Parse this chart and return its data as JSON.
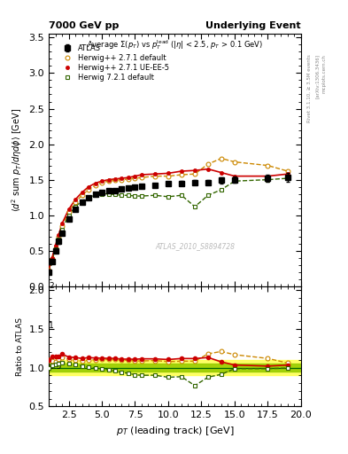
{
  "title_left": "7000 GeV pp",
  "title_right": "Underlying Event",
  "ylabel_main": "⟨d² sum p_T/dηdφ⟩ [GeV]",
  "ylabel_ratio": "Ratio to ATLAS",
  "xlabel": "p_{T} (leading track) [GeV]",
  "watermark": "ATLAS_2010_S8894728",
  "right_label1": "Rivet 3.1.10, ≥ 3.5M events",
  "right_label2": "[arXiv:1306.3436]",
  "right_label3": "mcplots.cern.ch",
  "ylim_main": [
    0,
    3.55
  ],
  "ylim_ratio": [
    0.5,
    2.05
  ],
  "xlim": [
    1,
    20
  ],
  "atlas_x": [
    1.0,
    1.25,
    1.5,
    1.75,
    2.0,
    2.5,
    3.0,
    3.5,
    4.0,
    4.5,
    5.0,
    5.5,
    6.0,
    6.5,
    7.0,
    7.5,
    8.0,
    9.0,
    10.0,
    11.0,
    12.0,
    13.0,
    14.0,
    15.0,
    17.5,
    19.0
  ],
  "atlas_y": [
    0.2,
    0.35,
    0.5,
    0.63,
    0.75,
    0.95,
    1.08,
    1.18,
    1.24,
    1.29,
    1.32,
    1.34,
    1.35,
    1.37,
    1.38,
    1.4,
    1.41,
    1.42,
    1.44,
    1.45,
    1.46,
    1.46,
    1.49,
    1.5,
    1.52,
    1.53
  ],
  "atlas_yerr": [
    0.03,
    0.03,
    0.03,
    0.03,
    0.03,
    0.03,
    0.02,
    0.02,
    0.02,
    0.02,
    0.02,
    0.02,
    0.02,
    0.02,
    0.02,
    0.02,
    0.02,
    0.02,
    0.02,
    0.03,
    0.03,
    0.03,
    0.04,
    0.04,
    0.05,
    0.06
  ],
  "atlas_color": "#000000",
  "hw271d_x": [
    1.0,
    1.25,
    1.5,
    1.75,
    2.0,
    2.5,
    3.0,
    3.5,
    4.0,
    4.5,
    5.0,
    5.5,
    6.0,
    6.5,
    7.0,
    7.5,
    8.0,
    9.0,
    10.0,
    11.0,
    12.0,
    13.0,
    14.0,
    15.0,
    17.5,
    19.0
  ],
  "hw271d_y": [
    0.22,
    0.38,
    0.54,
    0.7,
    0.85,
    1.05,
    1.18,
    1.28,
    1.36,
    1.42,
    1.46,
    1.48,
    1.49,
    1.5,
    1.51,
    1.52,
    1.53,
    1.55,
    1.55,
    1.57,
    1.58,
    1.72,
    1.8,
    1.75,
    1.7,
    1.62
  ],
  "hw271d_color": "#cc8800",
  "hw271ue_x": [
    1.0,
    1.25,
    1.5,
    1.75,
    2.0,
    2.5,
    3.0,
    3.5,
    4.0,
    4.5,
    5.0,
    5.5,
    6.0,
    6.5,
    7.0,
    7.5,
    8.0,
    9.0,
    10.0,
    11.0,
    12.0,
    13.0,
    14.0,
    15.0,
    17.5,
    19.0
  ],
  "hw271ue_y": [
    0.22,
    0.4,
    0.57,
    0.72,
    0.88,
    1.08,
    1.22,
    1.32,
    1.4,
    1.45,
    1.48,
    1.5,
    1.51,
    1.52,
    1.53,
    1.55,
    1.57,
    1.58,
    1.59,
    1.62,
    1.63,
    1.65,
    1.6,
    1.55,
    1.55,
    1.58
  ],
  "hw271ue_color": "#cc0000",
  "hw721d_x": [
    1.0,
    1.25,
    1.5,
    1.75,
    2.0,
    2.5,
    3.0,
    3.5,
    4.0,
    4.5,
    5.0,
    5.5,
    6.0,
    6.5,
    7.0,
    7.5,
    8.0,
    9.0,
    10.0,
    11.0,
    12.0,
    13.0,
    14.0,
    15.0,
    17.5,
    19.0
  ],
  "hw721d_y": [
    0.2,
    0.36,
    0.52,
    0.66,
    0.8,
    1.0,
    1.12,
    1.2,
    1.25,
    1.28,
    1.3,
    1.3,
    1.29,
    1.28,
    1.28,
    1.27,
    1.27,
    1.28,
    1.26,
    1.28,
    1.12,
    1.28,
    1.36,
    1.48,
    1.5,
    1.52
  ],
  "hw721d_color": "#336600",
  "atlas_band_lo": 0.9,
  "atlas_band_hi": 1.1,
  "atlas_band_color": "#ffff44",
  "atlas_band_inner_lo": 0.95,
  "atlas_band_inner_hi": 1.05,
  "atlas_band_inner_color": "#99cc00"
}
